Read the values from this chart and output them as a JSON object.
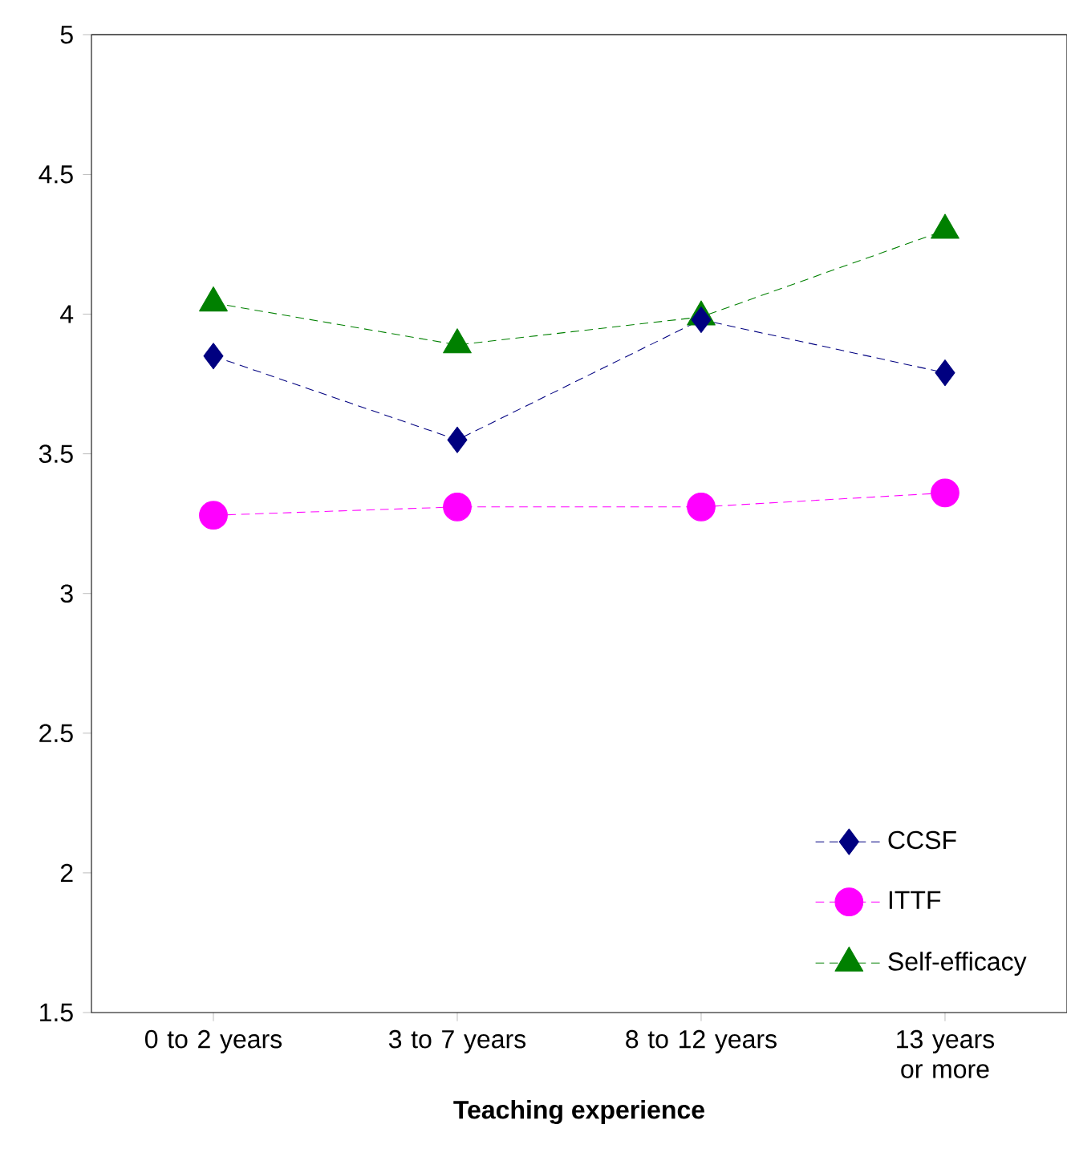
{
  "chart_data": {
    "type": "line",
    "xlabel": "Teaching experience",
    "categories": [
      "0 to 2 years",
      "3 to 7 years",
      "8 to 12 years",
      "13 years or more"
    ],
    "series": [
      {
        "name": "CCSF",
        "color": "#000080",
        "marker": "diamond",
        "line_style": "dashed",
        "values": [
          3.85,
          3.55,
          3.98,
          3.79
        ]
      },
      {
        "name": "ITTF",
        "color": "#ff00ff",
        "marker": "circle",
        "line_style": "dashed",
        "values": [
          3.28,
          3.31,
          3.31,
          3.36
        ]
      },
      {
        "name": "Self-efficacy",
        "color": "#008000",
        "marker": "triangle",
        "line_style": "dashed",
        "values": [
          4.04,
          3.89,
          3.99,
          4.3
        ]
      }
    ],
    "ylim": [
      1.5,
      5
    ],
    "yticks": [
      1.5,
      2,
      2.5,
      3,
      3.5,
      4,
      4.5,
      5
    ],
    "grid": false,
    "legend": "bottom right"
  }
}
